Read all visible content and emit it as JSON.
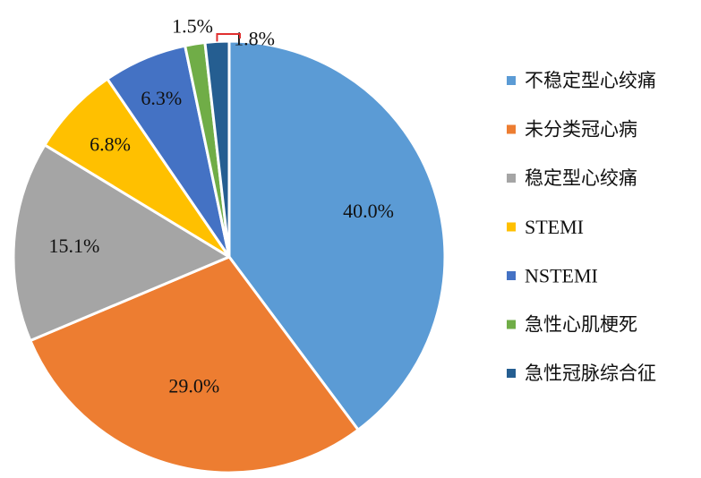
{
  "chart_data": {
    "type": "pie",
    "title": "",
    "start": "top",
    "direction": "clockwise",
    "legend_position": "right",
    "data_labels_unit": "%",
    "series": [
      {
        "slices": [
          {
            "name": "不稳定型心绞痛",
            "value": 40.0,
            "label": "40.0%",
            "color": "#5b9bd5"
          },
          {
            "name": "未分类冠心病",
            "value": 29.0,
            "label": "29.0%",
            "color": "#ed7d31"
          },
          {
            "name": "稳定型心绞痛",
            "value": 15.1,
            "label": "15.1%",
            "color": "#a5a5a5"
          },
          {
            "name": "STEMI",
            "value": 6.8,
            "label": "6.8%",
            "color": "#ffc000"
          },
          {
            "name": "NSTEMI",
            "value": 6.3,
            "label": "6.3%",
            "color": "#4472c4"
          },
          {
            "name": "急性心肌梗死",
            "value": 1.5,
            "label": "1.5%",
            "color": "#70ad47"
          },
          {
            "name": "急性冠脉综合征",
            "value": 1.8,
            "label": "1.8%",
            "color": "#255e91"
          }
        ]
      }
    ],
    "leader_line_color": "#e03030"
  }
}
